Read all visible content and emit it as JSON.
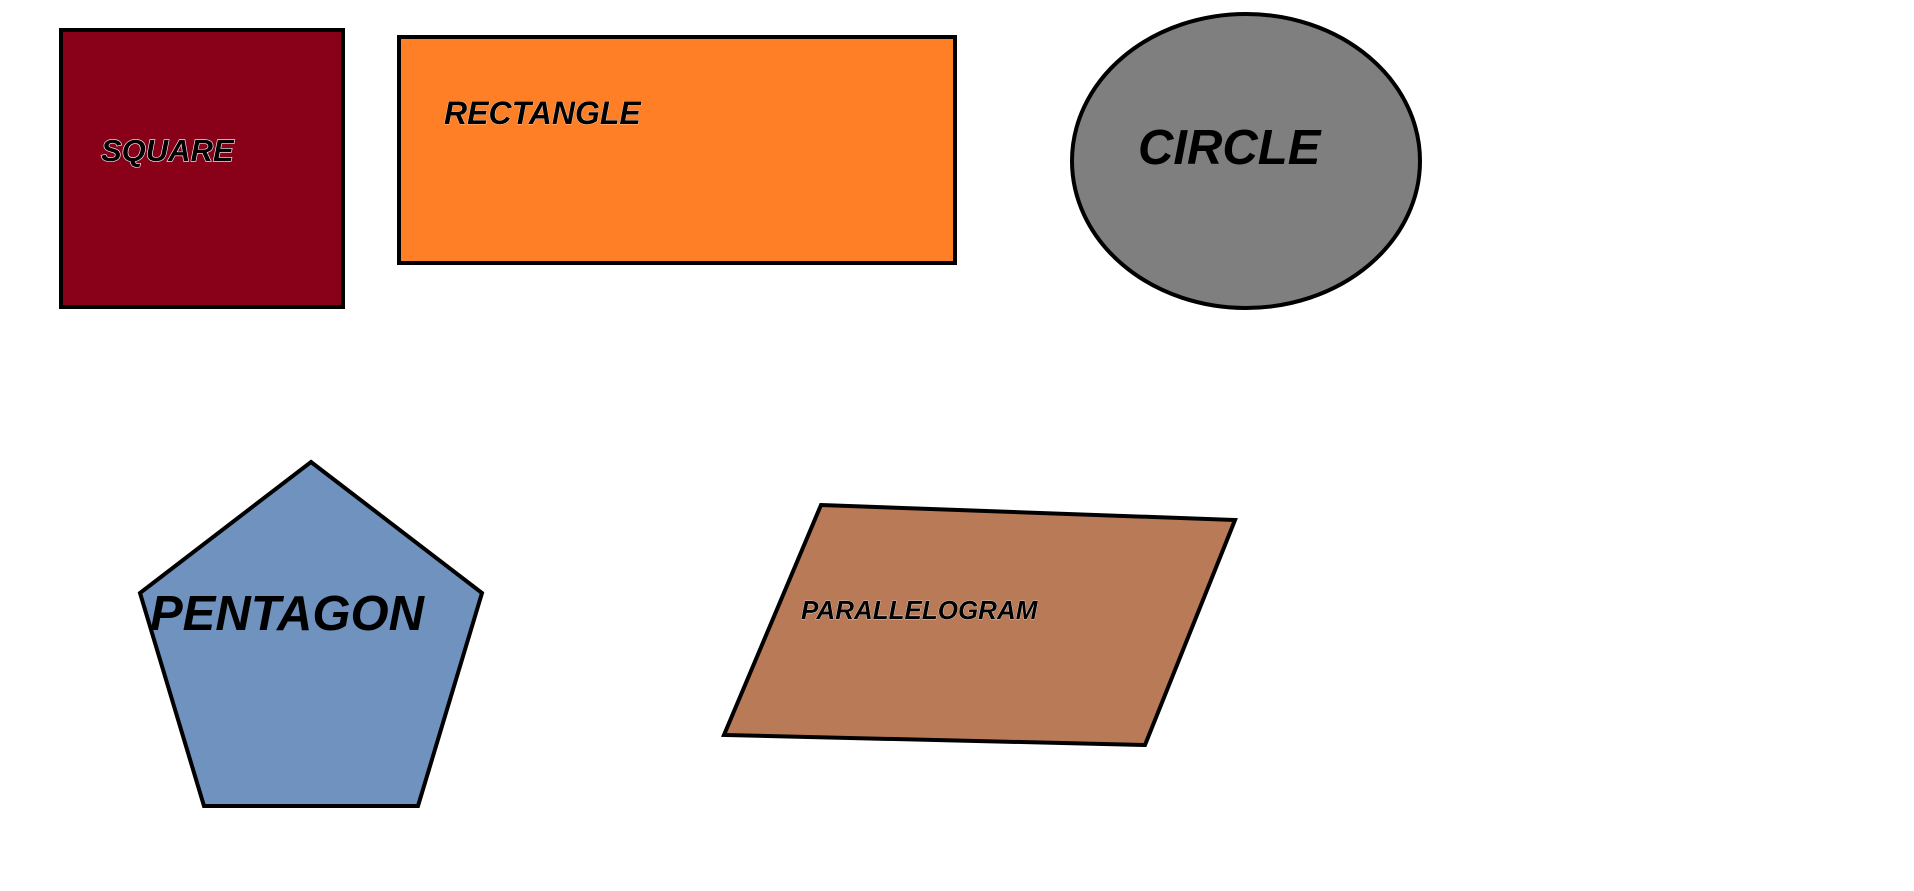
{
  "colors": {
    "background": "#ffffff",
    "outline": "#000000",
    "label": "#000000",
    "label_outline": "#ffffff"
  },
  "shapes": {
    "square": {
      "label": "SQUARE",
      "fill": "#880119"
    },
    "rectangle": {
      "label": "RECTANGLE",
      "fill": "#ff7f27"
    },
    "circle": {
      "label": "CIRCLE",
      "fill": "#7f7f7f"
    },
    "pentagon": {
      "label": "PENTAGON",
      "fill": "#7092be"
    },
    "parallelogram": {
      "label": "PARALLELOGRAM",
      "fill": "#b97a57"
    }
  }
}
